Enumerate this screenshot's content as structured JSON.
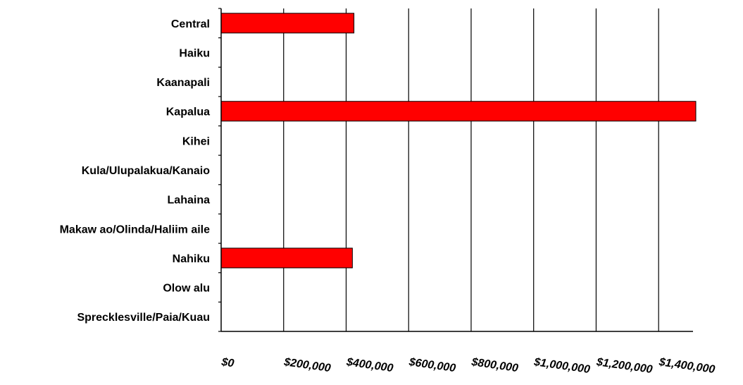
{
  "chart_data": {
    "type": "bar",
    "orientation": "horizontal",
    "categories": [
      "Central",
      "Haiku",
      "Kaanapali",
      "Kapalua",
      "Kihei",
      "Kula/Ulupalakua/Kanaio",
      "Lahaina",
      "Makaw ao/Olinda/Haliim aile",
      "Nahiku",
      "Olow alu",
      "Sprecklesville/Paia/Kuau"
    ],
    "values": [
      425000,
      0,
      0,
      1520000,
      0,
      0,
      0,
      0,
      420000,
      0,
      0
    ],
    "xlim": [
      0,
      1510000
    ],
    "xticks": [
      0,
      200000,
      400000,
      600000,
      800000,
      1000000,
      1200000,
      1400000
    ],
    "xtick_labels": [
      "$0",
      "$200,000",
      "$400,000",
      "$600,000",
      "$800,000",
      "$1,000,000",
      "$1,200,000",
      "$1,400,000"
    ],
    "bar_color": "#ff0000",
    "grid": "vertical",
    "legend": "none",
    "title": "",
    "xlabel": "",
    "ylabel": ""
  }
}
